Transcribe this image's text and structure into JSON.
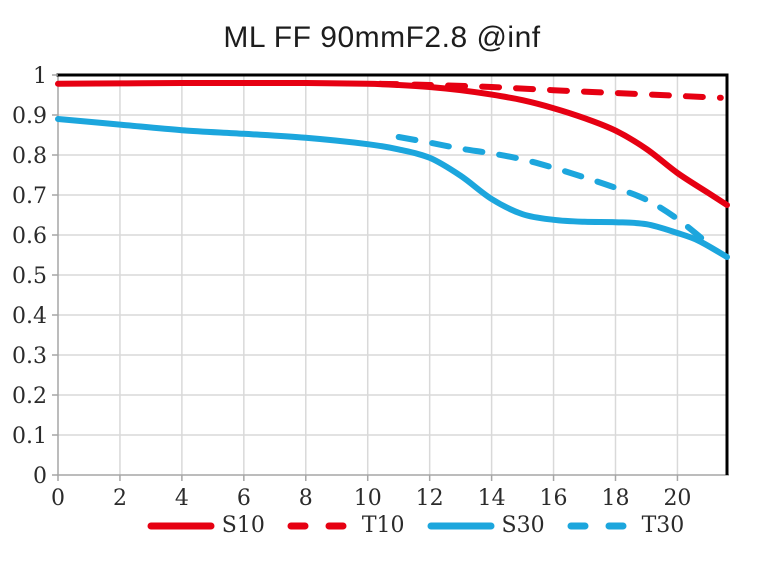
{
  "title": "ML FF 90mmF2.8 @inf",
  "colors": {
    "red": "#e60012",
    "blue": "#1ca6dd",
    "grid": "#d9d9d9",
    "axis": "#a6a6a6",
    "border": "#000000",
    "tick_text": "#2b2b2b",
    "title_text": "#1d1d1d",
    "background": "#ffffff"
  },
  "chart_data": {
    "type": "line",
    "title": "ML FF 90mmF2.8 @inf",
    "xlabel": "",
    "ylabel": "",
    "xlim": [
      0,
      21.6
    ],
    "ylim": [
      0,
      1
    ],
    "grid": true,
    "legend_position": "bottom",
    "x_ticks": [
      0,
      2,
      4,
      6,
      8,
      10,
      12,
      14,
      16,
      18,
      20
    ],
    "x_tick_labels": [
      "0",
      "2",
      "4",
      "6",
      "8",
      "10",
      "12",
      "14",
      "16",
      "18",
      "20"
    ],
    "y_ticks": [
      0,
      0.1,
      0.2,
      0.3,
      0.4,
      0.5,
      0.6,
      0.7,
      0.8,
      0.9,
      1
    ],
    "y_tick_labels": [
      "0",
      "0.1",
      "0.2",
      "0.3",
      "0.4",
      "0.5",
      "0.6",
      "0.7",
      "0.8",
      "0.9",
      "1"
    ],
    "series": [
      {
        "name": "S10",
        "color": "#e60012",
        "style": "solid",
        "x": [
          0,
          2,
          4,
          6,
          8,
          10,
          11,
          12,
          13,
          14,
          15,
          16,
          17,
          18,
          19,
          20,
          21,
          21.6
        ],
        "y": [
          0.978,
          0.979,
          0.98,
          0.98,
          0.98,
          0.978,
          0.975,
          0.97,
          0.962,
          0.951,
          0.937,
          0.917,
          0.892,
          0.861,
          0.815,
          0.755,
          0.705,
          0.675
        ]
      },
      {
        "name": "T10",
        "color": "#e60012",
        "style": "dashed",
        "x": [
          10.4,
          12,
          14,
          16,
          18,
          20,
          21.4
        ],
        "y": [
          0.978,
          0.975,
          0.97,
          0.962,
          0.955,
          0.948,
          0.943
        ]
      },
      {
        "name": "S30",
        "color": "#1ca6dd",
        "style": "solid",
        "x": [
          0,
          2,
          4,
          6,
          8,
          10,
          11,
          12,
          13,
          14,
          15,
          16,
          17,
          18,
          19,
          20,
          20.7,
          21.6
        ],
        "y": [
          0.89,
          0.876,
          0.862,
          0.853,
          0.843,
          0.827,
          0.814,
          0.793,
          0.748,
          0.69,
          0.652,
          0.638,
          0.633,
          0.632,
          0.627,
          0.605,
          0.585,
          0.545
        ]
      },
      {
        "name": "T30",
        "color": "#1ca6dd",
        "style": "dashed",
        "x": [
          11,
          12,
          13,
          14,
          15,
          16,
          17,
          18,
          19,
          20,
          21
        ],
        "y": [
          0.845,
          0.831,
          0.816,
          0.804,
          0.789,
          0.768,
          0.744,
          0.718,
          0.688,
          0.64,
          0.578
        ]
      }
    ]
  },
  "legend": {
    "items": [
      {
        "label": "S10",
        "style": "solid",
        "color": "#e60012"
      },
      {
        "label": "T10",
        "style": "dashed",
        "color": "#e60012"
      },
      {
        "label": "S30",
        "style": "solid",
        "color": "#1ca6dd"
      },
      {
        "label": "T30",
        "style": "dashed",
        "color": "#1ca6dd"
      }
    ]
  }
}
